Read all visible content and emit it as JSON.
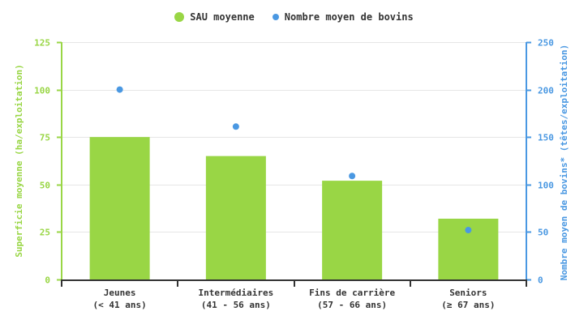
{
  "chart_data": {
    "type": "bar",
    "title": "",
    "categories": [
      [
        "Jeunes",
        "(< 41 ans)"
      ],
      [
        "Intermédiaires",
        "(41 - 56 ans)"
      ],
      [
        "Fins de carrière",
        "(57 - 66 ans)"
      ],
      [
        "Seniors",
        "(≥ 67 ans)"
      ]
    ],
    "series": [
      {
        "name": "SAU moyenne",
        "type": "bar",
        "axis": "left",
        "color": "#99d645",
        "values": [
          75,
          65,
          52,
          32
        ]
      },
      {
        "name": "Nombre moyen de bovins",
        "type": "scatter",
        "axis": "right",
        "color": "#4a98e2",
        "values": [
          200,
          161,
          109,
          52
        ]
      }
    ],
    "ylabel_left": "Superficie moyenne (ha/exploitation)",
    "ylabel_right": "Nombre moyen de bovins* (têtes/exploitation)",
    "ylim_left": [
      0,
      125
    ],
    "ylim_right": [
      0,
      250
    ],
    "yticks_left": [
      "0",
      "25",
      "50",
      "75",
      "100",
      "125"
    ],
    "yticks_right": [
      "0",
      "50",
      "100",
      "150",
      "200",
      "250"
    ],
    "grid": true,
    "legend_position": "top"
  },
  "legend": {
    "items": [
      {
        "label": "SAU moyenne",
        "color": "#99d645"
      },
      {
        "label": "Nombre moyen de bovins",
        "color": "#4a98e2"
      }
    ]
  }
}
